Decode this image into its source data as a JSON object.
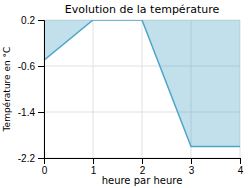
{
  "chart_data": {
    "type": "area",
    "title": "Evolution de la température",
    "xlabel": "heure par heure",
    "ylabel": "Température en °C",
    "x": [
      0,
      1,
      2,
      3,
      4
    ],
    "values": [
      -0.5,
      0.2,
      0.2,
      -2.0,
      -2.0
    ],
    "color": "#4da6c8",
    "xlim": [
      0,
      4
    ],
    "ylim": [
      -2.2,
      0.2
    ],
    "xticks": [
      0,
      1,
      2,
      3,
      4
    ],
    "yticks": [
      0.2,
      -0.6,
      -1.4,
      -2.2
    ],
    "grid": true
  }
}
